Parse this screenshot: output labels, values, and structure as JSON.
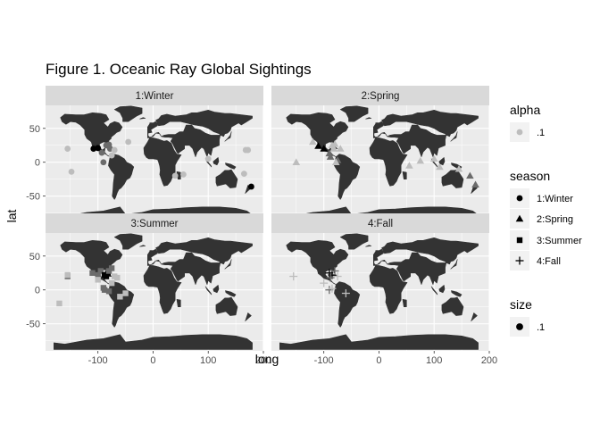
{
  "chart_data": {
    "type": "scatter",
    "title": "Figure 1. Oceanic Ray Global Sightings",
    "xlabel": "long",
    "ylabel": "lat",
    "xlim": [
      -195,
      200
    ],
    "ylim": [
      -90,
      84
    ],
    "x_ticks": [
      -100,
      0,
      100,
      200
    ],
    "y_ticks": [
      50,
      0,
      -50
    ],
    "x_tick_labels": [
      "-100",
      "0",
      "100",
      "200"
    ],
    "y_tick_labels": [
      "50",
      "0",
      "-50"
    ],
    "grid": true,
    "legend_position": "right",
    "legends": [
      {
        "title": "alpha",
        "items": [
          {
            "label": ".1"
          }
        ]
      },
      {
        "title": "season",
        "items": [
          {
            "label": "1:Winter",
            "shape": "circle"
          },
          {
            "label": "2:Spring",
            "shape": "triangle"
          },
          {
            "label": "3:Summer",
            "shape": "square"
          },
          {
            "label": "4:Fall",
            "shape": "plus"
          }
        ]
      },
      {
        "title": "size",
        "items": [
          {
            "label": ".1"
          }
        ]
      }
    ],
    "panels": [
      {
        "label": "1:Winter",
        "shape": "circle",
        "points": [
          [
            -155,
            20,
            "light"
          ],
          [
            -148,
            -14,
            "light"
          ],
          [
            -108,
            20,
            "dark"
          ],
          [
            -100,
            21,
            "dark"
          ],
          [
            -93,
            14,
            "mid"
          ],
          [
            -90,
            0,
            "mid"
          ],
          [
            -85,
            25,
            "mid"
          ],
          [
            -80,
            26,
            "mid"
          ],
          [
            -78,
            20,
            "mid"
          ],
          [
            -75,
            10,
            "light"
          ],
          [
            -70,
            18,
            "light"
          ],
          [
            -45,
            30,
            "light"
          ],
          [
            40,
            -20,
            "light"
          ],
          [
            55,
            -18,
            "light"
          ],
          [
            100,
            5,
            "light"
          ],
          [
            165,
            -17,
            "light"
          ],
          [
            168,
            18,
            "light"
          ],
          [
            172,
            18,
            "light"
          ],
          [
            178,
            -36,
            "dark"
          ]
        ]
      },
      {
        "label": "2:Spring",
        "shape": "triangle",
        "points": [
          [
            -150,
            0,
            "light"
          ],
          [
            -110,
            24,
            "dark"
          ],
          [
            -100,
            20,
            "dark"
          ],
          [
            -90,
            13,
            "mid"
          ],
          [
            -88,
            8,
            "mid"
          ],
          [
            -85,
            25,
            "light"
          ],
          [
            -80,
            27,
            "light"
          ],
          [
            -75,
            3,
            "mid"
          ],
          [
            -78,
            0,
            "light"
          ],
          [
            -70,
            20,
            "light"
          ],
          [
            -82,
            20,
            "light"
          ],
          [
            55,
            -5,
            "light"
          ],
          [
            75,
            2,
            "light"
          ],
          [
            100,
            5,
            "light"
          ],
          [
            110,
            -7,
            "light"
          ],
          [
            145,
            -10,
            "light"
          ],
          [
            165,
            -20,
            "mid"
          ],
          [
            175,
            -33,
            "mid"
          ],
          [
            -120,
            30,
            "light"
          ]
        ]
      },
      {
        "label": "3:Summer",
        "shape": "square",
        "points": [
          [
            -170,
            -20,
            "light"
          ],
          [
            -155,
            20,
            "mid"
          ],
          [
            -155,
            22,
            "light"
          ],
          [
            -110,
            25,
            "mid"
          ],
          [
            -100,
            22,
            "mid"
          ],
          [
            -95,
            28,
            "mid"
          ],
          [
            -88,
            22,
            "dark"
          ],
          [
            -85,
            20,
            "dark"
          ],
          [
            -82,
            24,
            "dark"
          ],
          [
            -80,
            28,
            "mid"
          ],
          [
            -75,
            32,
            "mid"
          ],
          [
            -70,
            20,
            "light"
          ],
          [
            -65,
            18,
            "light"
          ],
          [
            -90,
            3,
            "mid"
          ],
          [
            -88,
            0,
            "mid"
          ],
          [
            -80,
            -2,
            "mid"
          ],
          [
            -75,
            10,
            "light"
          ],
          [
            -60,
            -10,
            "light"
          ],
          [
            -50,
            -5,
            "light"
          ],
          [
            -100,
            15,
            "light"
          ]
        ]
      },
      {
        "label": "4:Fall",
        "shape": "plus",
        "points": [
          [
            -155,
            20,
            "light"
          ],
          [
            -90,
            25,
            "dark"
          ],
          [
            -85,
            22,
            "dark"
          ],
          [
            -88,
            18,
            "mid"
          ],
          [
            -80,
            28,
            "mid"
          ],
          [
            -75,
            20,
            "light"
          ],
          [
            -90,
            0,
            "mid"
          ],
          [
            -85,
            2,
            "light"
          ],
          [
            -60,
            -5,
            "light"
          ],
          [
            -100,
            10,
            "light"
          ]
        ]
      }
    ]
  },
  "colors": {
    "panel_bg": "#ebebeb",
    "strip_bg": "#d9d9d9",
    "gridline": "#ffffff",
    "land": "#333333",
    "point_dark": "#000000",
    "point_mid": "#6b6b6b",
    "point_light": "#bdbdbd"
  }
}
